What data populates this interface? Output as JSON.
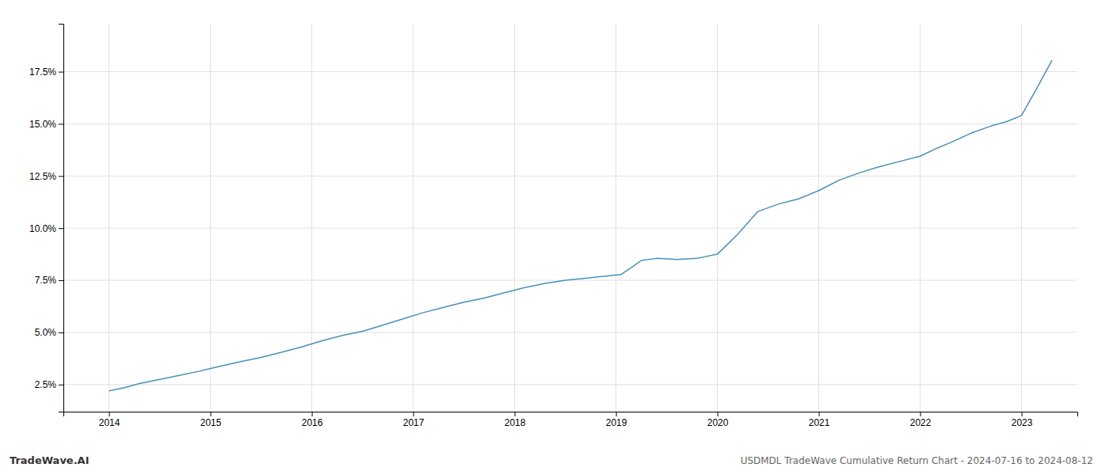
{
  "chart_data": {
    "type": "line",
    "title": "USDMDL TradeWave Cumulative Return Chart - 2024-07-16 to 2024-08-12",
    "annotations": [
      "TradeWave.AI"
    ],
    "color": "#4a90b8",
    "grid": true,
    "x": [
      2014.0,
      2014.15,
      2014.3,
      2014.5,
      2014.7,
      2014.9,
      2015.1,
      2015.3,
      2015.5,
      2015.7,
      2015.9,
      2016.1,
      2016.3,
      2016.5,
      2016.7,
      2016.9,
      2017.1,
      2017.3,
      2017.5,
      2017.7,
      2017.9,
      2018.1,
      2018.3,
      2018.5,
      2018.7,
      2018.9,
      2019.05,
      2019.15,
      2019.25,
      2019.4,
      2019.6,
      2019.8,
      2020.0,
      2020.2,
      2020.4,
      2020.6,
      2020.8,
      2021.0,
      2021.2,
      2021.4,
      2021.6,
      2021.8,
      2022.0,
      2022.15,
      2022.3,
      2022.5,
      2022.7,
      2022.85,
      2023.0,
      2023.15,
      2023.3
    ],
    "values": [
      2.2,
      2.35,
      2.55,
      2.75,
      2.95,
      3.15,
      3.38,
      3.6,
      3.8,
      4.05,
      4.3,
      4.6,
      4.85,
      5.05,
      5.35,
      5.65,
      5.95,
      6.2,
      6.45,
      6.65,
      6.9,
      7.15,
      7.35,
      7.5,
      7.6,
      7.7,
      7.78,
      8.1,
      8.45,
      8.55,
      8.5,
      8.55,
      8.75,
      9.7,
      10.8,
      11.15,
      11.4,
      11.8,
      12.3,
      12.65,
      12.95,
      13.2,
      13.45,
      13.8,
      14.1,
      14.55,
      14.9,
      15.1,
      15.4,
      16.7,
      18.05
    ],
    "xlim": [
      2013.55,
      2023.55
    ],
    "ylim": [
      1.2,
      19.8
    ],
    "xticks": [
      2014,
      2015,
      2016,
      2017,
      2018,
      2019,
      2020,
      2021,
      2022,
      2023
    ],
    "yticks": [
      {
        "value": 2.5,
        "label": "2.5%"
      },
      {
        "value": 5.0,
        "label": "5.0%"
      },
      {
        "value": 7.5,
        "label": "7.5%"
      },
      {
        "value": 10.0,
        "label": "10.0%"
      },
      {
        "value": 12.5,
        "label": "12.5%"
      },
      {
        "value": 15.0,
        "label": "15.0%"
      },
      {
        "value": 17.5,
        "label": "17.5%"
      }
    ]
  }
}
